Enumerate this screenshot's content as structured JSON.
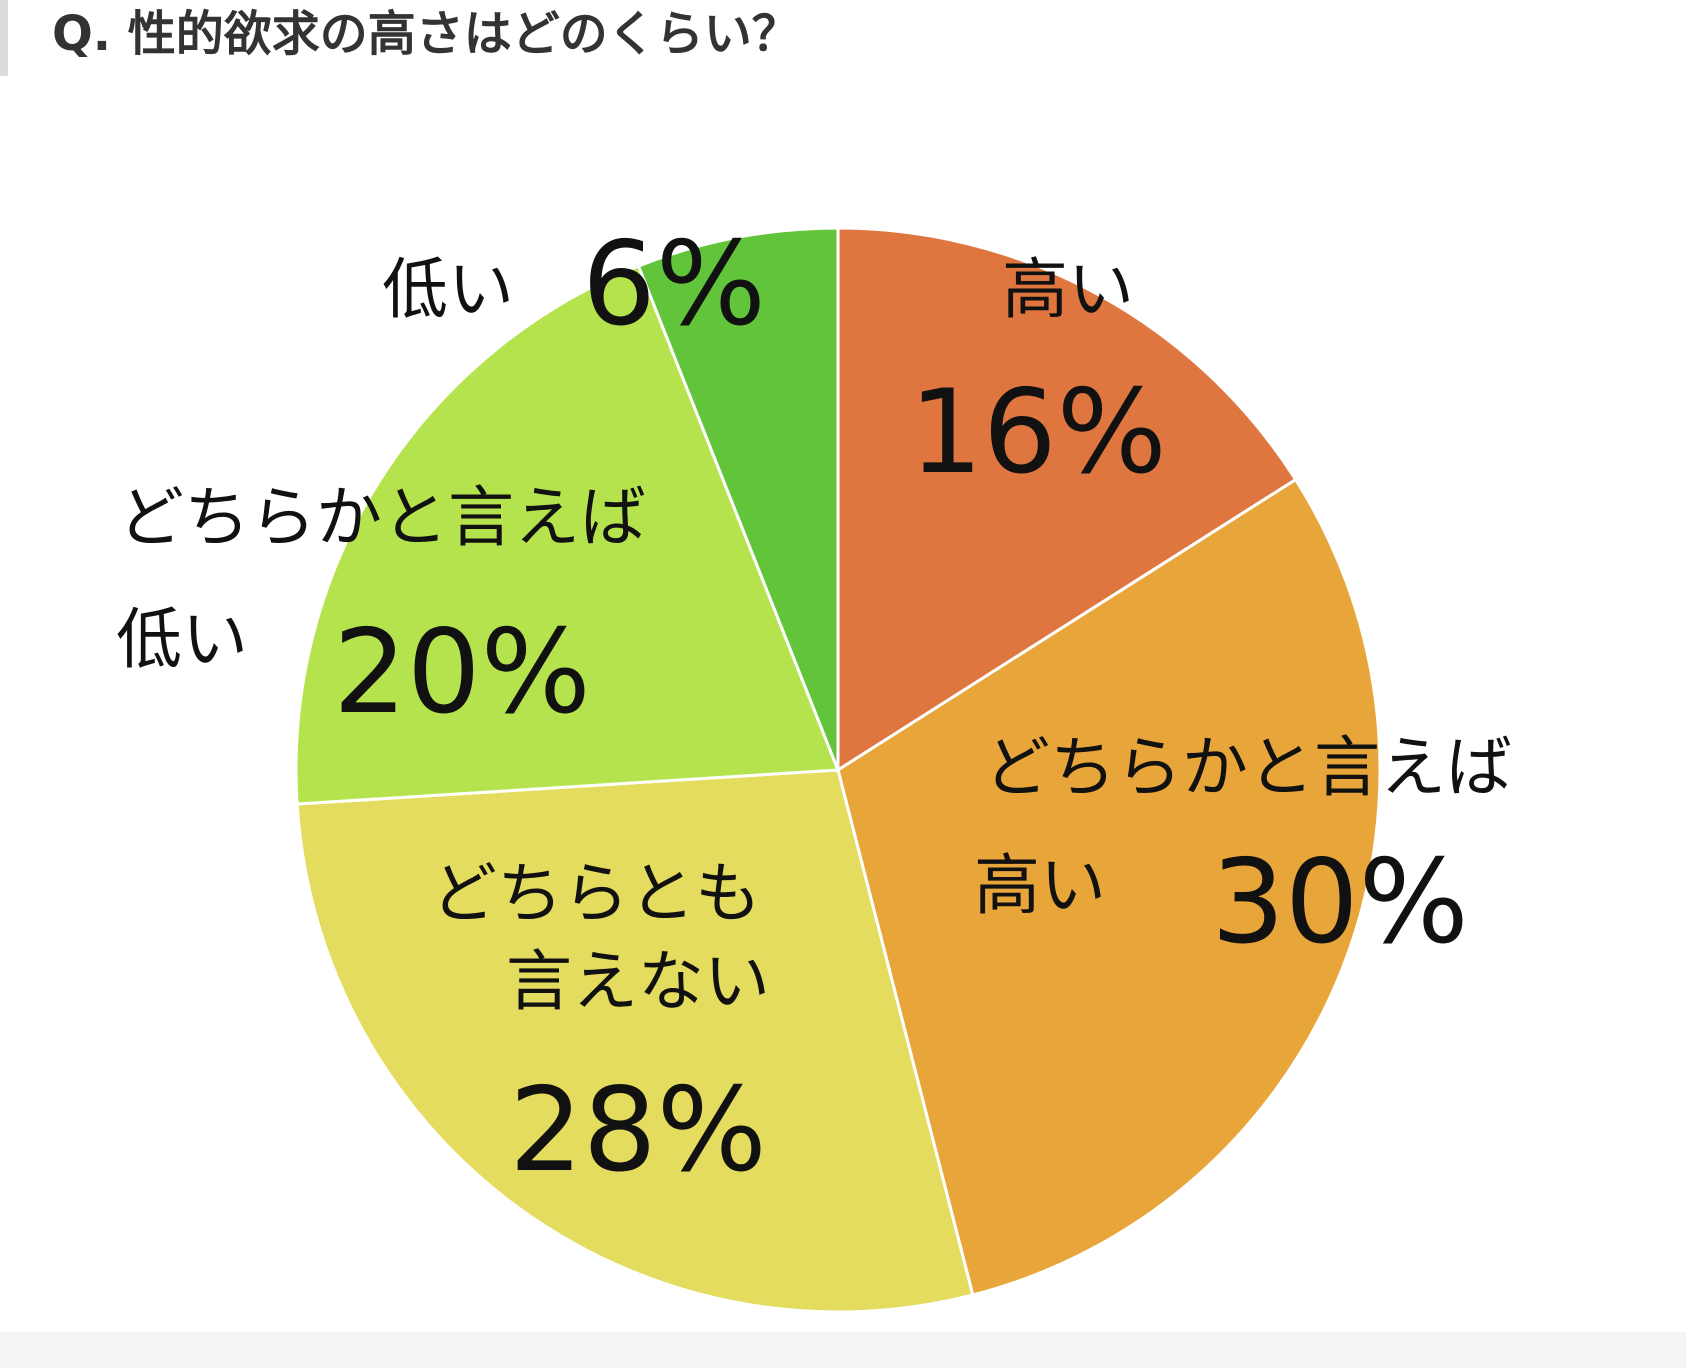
{
  "question": "Q. 性的欲求の高さはどのくらい？",
  "chart_data": {
    "type": "pie",
    "title": "Q. 性的欲求の高さはどのくらい？",
    "start": "top",
    "direction": "clockwise",
    "slices": [
      {
        "label_lines": [
          "高い"
        ],
        "value": 16,
        "value_label": "16%",
        "color": "#df7640"
      },
      {
        "label_lines": [
          "どちらかと言えば",
          "高い"
        ],
        "value": 30,
        "value_label": "30%",
        "color": "#e8a63a"
      },
      {
        "label_lines": [
          "どちらとも",
          "言えない"
        ],
        "value": 28,
        "value_label": "28%",
        "color": "#e4dc5e"
      },
      {
        "label_lines": [
          "どちらかと言えば",
          "低い"
        ],
        "value": 20,
        "value_label": "20%",
        "color": "#b5e34e"
      },
      {
        "label_lines": [
          "低い"
        ],
        "value": 6,
        "value_label": "6%",
        "color": "#62c43a"
      }
    ]
  }
}
